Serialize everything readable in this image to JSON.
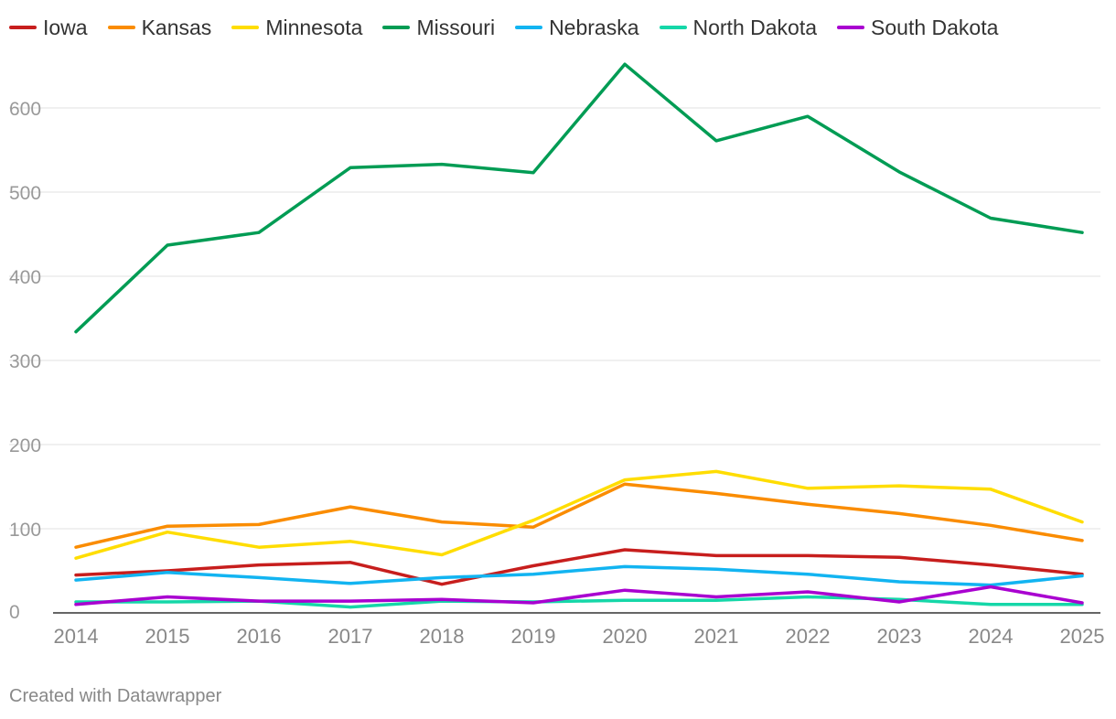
{
  "chart_data": {
    "type": "line",
    "x": [
      "2014",
      "2015",
      "2016",
      "2017",
      "2018",
      "2019",
      "2020",
      "2021",
      "2022",
      "2023",
      "2024",
      "2025"
    ],
    "ylim": [
      0,
      650
    ],
    "yticks": [
      0,
      100,
      200,
      300,
      400,
      500,
      600
    ],
    "grid": true,
    "legend": "top",
    "series": [
      {
        "name": "Iowa",
        "color": "#c71e1d",
        "values": [
          45,
          50,
          57,
          60,
          34,
          56,
          75,
          68,
          68,
          66,
          57,
          46
        ]
      },
      {
        "name": "Kansas",
        "color": "#fa8c00",
        "values": [
          78,
          103,
          105,
          126,
          108,
          102,
          153,
          142,
          129,
          118,
          104,
          86
        ]
      },
      {
        "name": "Minnesota",
        "color": "#ffdd00",
        "values": [
          65,
          96,
          78,
          85,
          69,
          110,
          158,
          168,
          148,
          151,
          147,
          108
        ]
      },
      {
        "name": "Missouri",
        "color": "#009c54",
        "values": [
          334,
          437,
          452,
          529,
          533,
          523,
          652,
          561,
          590,
          524,
          469,
          452
        ]
      },
      {
        "name": "Nebraska",
        "color": "#12b4f1",
        "values": [
          39,
          48,
          42,
          35,
          42,
          46,
          55,
          52,
          46,
          37,
          33,
          44
        ]
      },
      {
        "name": "North Dakota",
        "color": "#15d7a8",
        "values": [
          13,
          13,
          14,
          7,
          14,
          13,
          15,
          15,
          19,
          16,
          10,
          10
        ]
      },
      {
        "name": "South Dakota",
        "color": "#a900d0",
        "values": [
          10,
          19,
          14,
          14,
          16,
          12,
          27,
          19,
          25,
          13,
          31,
          12
        ]
      }
    ]
  },
  "footer": {
    "credit": "Created with Datawrapper"
  }
}
